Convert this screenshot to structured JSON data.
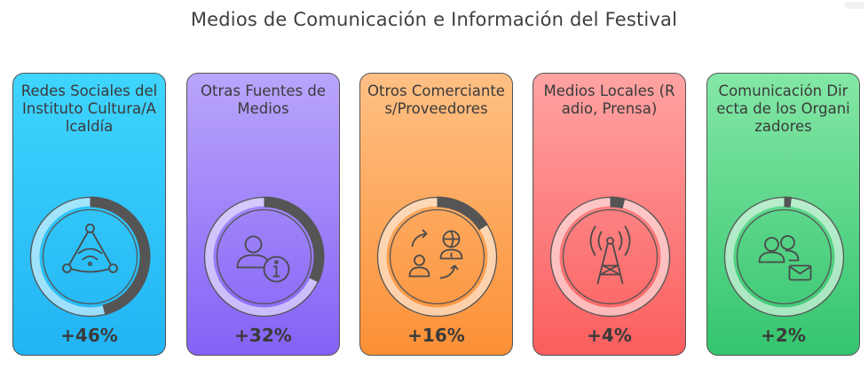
{
  "title": "Medios de Comunicación e Información del Festival",
  "chart_data": {
    "type": "gauge",
    "title": "Medios de Comunicación e Información del Festival",
    "categories": [
      "Redes Sociales del Instituto Cultura/Alcaldía",
      "Otras Fuentes de Medios",
      "Otros Comerciantes/Proveedores",
      "Medios Locales (Radio, Prensa)",
      "Comunicación Directa de los Organizadores"
    ],
    "values": [
      46,
      32,
      16,
      4,
      2
    ],
    "value_labels": [
      "+46%",
      "+32%",
      "+16%",
      "+4%",
      "+2%"
    ],
    "unit": "%",
    "max": 100,
    "icons": [
      "wifi-network-icon",
      "user-info-icon",
      "user-exchange-icon",
      "radio-tower-icon",
      "users-message-icon"
    ],
    "colors": [
      [
        "#3fd5fd",
        "#22b4f4"
      ],
      [
        "#b9a5fb",
        "#8462f6"
      ],
      [
        "#ffc084",
        "#fb9036"
      ],
      [
        "#ffa3a3",
        "#fb5e5e"
      ],
      [
        "#84e7a6",
        "#34c56e"
      ]
    ],
    "ring_fill_color": "#555555",
    "ring_track_color": "rgba(255,255,255,0.55)"
  }
}
